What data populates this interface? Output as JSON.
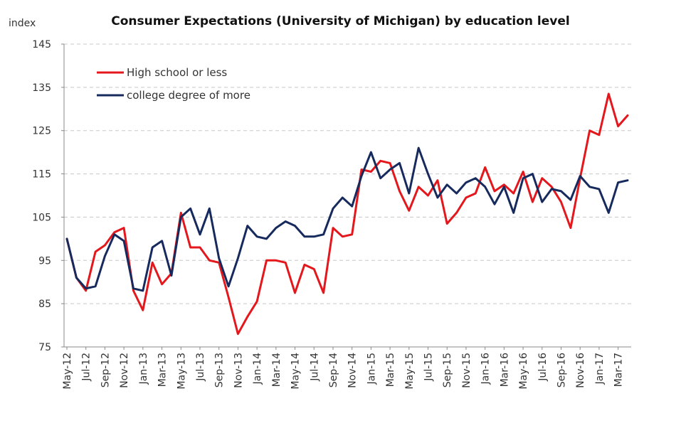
{
  "chart_data": {
    "type": "line",
    "title": "Consumer Expectations (University of Michigan) by education level",
    "ylabel": "index",
    "xlabel": "",
    "ylim": [
      75,
      145
    ],
    "yticks": [
      75,
      85,
      95,
      105,
      115,
      125,
      135,
      145
    ],
    "grid": "horizontal dashed",
    "legend_position": "top-left",
    "categories": [
      "May-12",
      "Jun-12",
      "Jul-12",
      "Aug-12",
      "Sep-12",
      "Oct-12",
      "Nov-12",
      "Dec-12",
      "Jan-13",
      "Feb-13",
      "Mar-13",
      "Apr-13",
      "May-13",
      "Jun-13",
      "Jul-13",
      "Aug-13",
      "Sep-13",
      "Oct-13",
      "Nov-13",
      "Dec-13",
      "Jan-14",
      "Feb-14",
      "Mar-14",
      "Apr-14",
      "May-14",
      "Jun-14",
      "Jul-14",
      "Aug-14",
      "Sep-14",
      "Oct-14",
      "Nov-14",
      "Dec-14",
      "Jan-15",
      "Feb-15",
      "Mar-15",
      "Apr-15",
      "May-15",
      "Jun-15",
      "Jul-15",
      "Aug-15",
      "Sep-15",
      "Oct-15",
      "Nov-15",
      "Dec-15",
      "Jan-16",
      "Feb-16",
      "Mar-16",
      "Apr-16",
      "May-16",
      "Jun-16",
      "Jul-16",
      "Aug-16",
      "Sep-16",
      "Oct-16",
      "Nov-16",
      "Dec-16",
      "Jan-17",
      "Feb-17",
      "Mar-17",
      "Apr-17"
    ],
    "tick_labels": [
      "May-12",
      "Jul-12",
      "Sep-12",
      "Nov-12",
      "Jan-13",
      "Mar-13",
      "May-13",
      "Jul-13",
      "Sep-13",
      "Nov-13",
      "Jan-14",
      "Mar-14",
      "May-14",
      "Jul-14",
      "Sep-14",
      "Nov-14",
      "Jan-15",
      "Mar-15",
      "May-15",
      "Jul-15",
      "Sep-15",
      "Nov-15",
      "Jan-16",
      "Mar-16",
      "May-16",
      "Jul-16",
      "Sep-16",
      "Nov-16",
      "Jan-17",
      "Mar-17"
    ],
    "series": [
      {
        "name": "High school or less",
        "color": "#e3171c",
        "values": [
          100,
          91,
          88,
          97,
          98.5,
          101.5,
          102.5,
          88,
          83.5,
          94.5,
          89.5,
          92,
          106,
          98,
          98,
          95,
          94.5,
          86.5,
          78,
          82,
          85.5,
          95,
          95,
          94.5,
          87.5,
          94,
          93,
          87.5,
          102.5,
          100.5,
          101,
          116,
          115.5,
          118,
          117.5,
          111,
          106.5,
          112,
          110,
          113.5,
          103.5,
          106,
          109.5,
          110.5,
          116.5,
          111,
          112.5,
          110.5,
          115.5,
          108.5,
          114,
          112,
          108.5,
          102.5,
          114,
          125,
          124,
          133.5,
          126,
          128.5
        ]
      },
      {
        "name": "college degree of more",
        "color": "#172a5d",
        "values": [
          100,
          91,
          88.5,
          89,
          96,
          101,
          99.5,
          88.5,
          88,
          98,
          99.5,
          91.5,
          105,
          107,
          101,
          107,
          95.5,
          89,
          95.5,
          103,
          100.5,
          100,
          102.5,
          104,
          103,
          100.5,
          100.5,
          101,
          107,
          109.5,
          107.5,
          114.5,
          120,
          114,
          116,
          117.5,
          110.5,
          121,
          115,
          109.5,
          112.5,
          110.5,
          113,
          114,
          112,
          108,
          112,
          106,
          114,
          115,
          108.5,
          111.5,
          111,
          109,
          114.5,
          112,
          111.5,
          106,
          113,
          113.5
        ]
      }
    ]
  }
}
